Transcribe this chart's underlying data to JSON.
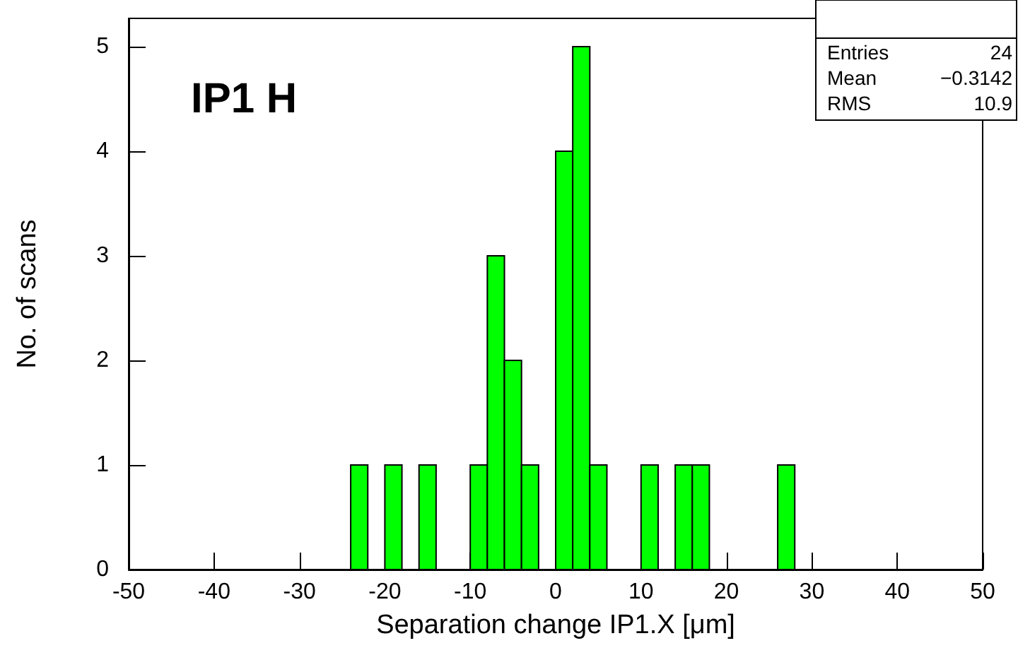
{
  "chart_data": {
    "type": "histogram",
    "title": "IP1 H",
    "xlabel": "Separation change IP1.X [μm]",
    "ylabel": "No. of scans",
    "color": "#00ff00",
    "bins": [
      -50,
      -48,
      -46,
      -44,
      -42,
      -40,
      -38,
      -36,
      -34,
      -32,
      -30,
      -28,
      -26,
      -24,
      -22,
      -20,
      -18,
      -16,
      -14,
      -12,
      -10,
      -8,
      -6,
      -4,
      -2,
      0,
      2,
      4,
      6,
      8,
      10,
      12,
      14,
      16,
      18,
      20,
      22,
      24,
      26,
      28,
      30,
      32,
      34,
      36,
      38,
      40,
      42,
      44,
      46,
      48,
      50
    ],
    "values": [
      0,
      0,
      0,
      0,
      0,
      0,
      0,
      0,
      0,
      0,
      0,
      0,
      0,
      1,
      0,
      1,
      0,
      1,
      0,
      0,
      1,
      3,
      2,
      1,
      0,
      4,
      5,
      1,
      0,
      0,
      1,
      0,
      1,
      1,
      0,
      0,
      0,
      0,
      1,
      0,
      0,
      0,
      0,
      0,
      0,
      0,
      0,
      0,
      0,
      0
    ],
    "xlim": [
      -50,
      50
    ],
    "xticks": [
      -50,
      -40,
      -30,
      -20,
      -10,
      0,
      10,
      20,
      30,
      40,
      50
    ],
    "ylim": [
      0,
      5.27
    ],
    "yticks": [
      0,
      1,
      2,
      3,
      4,
      5
    ],
    "grid": false,
    "annotations": [
      "Entries",
      "24",
      "Mean",
      "−0.3142",
      "RMS",
      "10.9"
    ]
  }
}
